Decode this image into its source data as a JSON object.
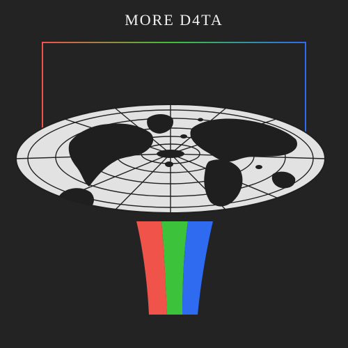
{
  "cover": {
    "title": "MORE D4TA",
    "background": "#232323",
    "colors": {
      "red": "#f0534a",
      "green": "#3dc23b",
      "blue": "#2f6bf0",
      "disc": "#e2e2e2",
      "land": "#1f1f1f"
    },
    "icons": [
      "spectrum-frame-icon",
      "globe-funnel-icon",
      "rgb-beam-icon"
    ]
  }
}
